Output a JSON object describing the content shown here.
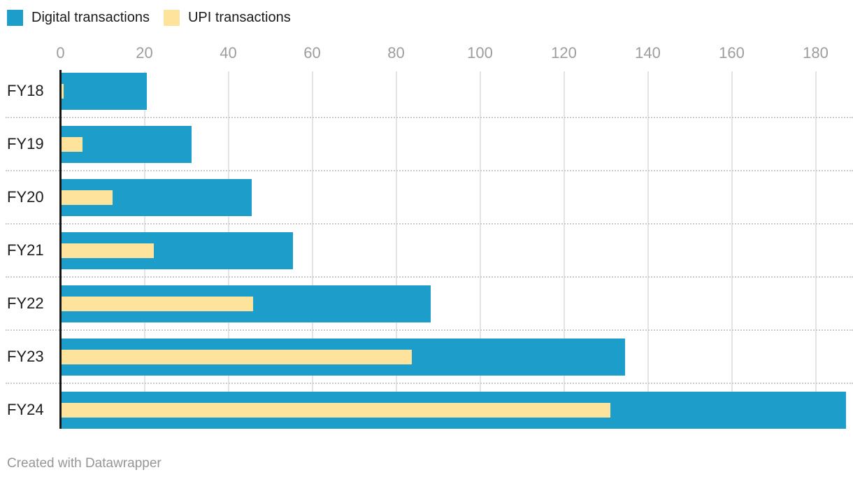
{
  "legend": {
    "items": [
      {
        "label": "Digital transactions",
        "color": "#1D9DC9"
      },
      {
        "label": "UPI transactions",
        "color": "#FDE39C"
      }
    ]
  },
  "footer": {
    "credit": "Created with Datawrapper"
  },
  "colors": {
    "digital_bar": "#1D9DC9",
    "upi_bar": "#FDE39C",
    "axis_baseline": "#161616",
    "gridline": "#e4e4e4",
    "tick_label": "#9d9d9d",
    "text": "#1c1c1c"
  },
  "chart_data": {
    "type": "bar",
    "orientation": "horizontal",
    "title": "",
    "xlabel": "",
    "ylabel": "",
    "categories": [
      "FY18",
      "FY19",
      "FY20",
      "FY21",
      "FY22",
      "FY23",
      "FY24"
    ],
    "series": [
      {
        "name": "Digital transactions",
        "color": "#1D9DC9",
        "values": [
          20.7,
          31.3,
          45.7,
          55.5,
          88.4,
          134.6,
          187.3
        ]
      },
      {
        "name": "UPI transactions",
        "color": "#FDE39C",
        "values": [
          0.9,
          5.4,
          12.5,
          22.3,
          46.0,
          83.8,
          131.1
        ]
      }
    ],
    "x_ticks": [
      0,
      20,
      40,
      60,
      80,
      100,
      120,
      140,
      160,
      180
    ],
    "xlim": [
      0,
      188.9
    ],
    "grid": "vertical-solid-with-dotted-row-separators",
    "legend_position": "top-left",
    "bars_overlaid": true,
    "credit": "Created with Datawrapper"
  }
}
